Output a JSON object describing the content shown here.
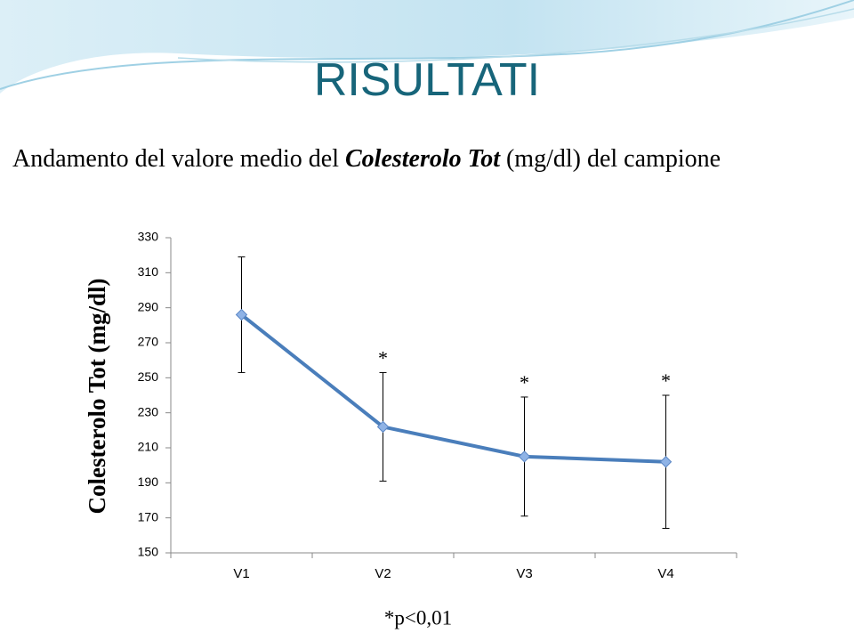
{
  "title": "RISULTATI",
  "subtitle": [
    "Andamento del valore medio del ",
    "Colesterolo Tot",
    " (mg/dl) del campione"
  ],
  "chart_data": {
    "type": "line",
    "y_label": "Colesterolo Tot (mg/dl)",
    "categories": [
      "V1",
      "V2",
      "V3",
      "V4"
    ],
    "series": [
      {
        "name": "Colesterolo Tot",
        "color": "#4a7ebb",
        "values": [
          286,
          222,
          205,
          202
        ],
        "errors": [
          33,
          31,
          34,
          38
        ]
      }
    ],
    "significance_marks": [
      null,
      "*",
      "*",
      "*"
    ],
    "ylim": [
      150,
      330
    ],
    "yticks": [
      150,
      170,
      190,
      210,
      230,
      250,
      270,
      290,
      310,
      330
    ],
    "grid": false,
    "footnote": "*p<0,01"
  }
}
